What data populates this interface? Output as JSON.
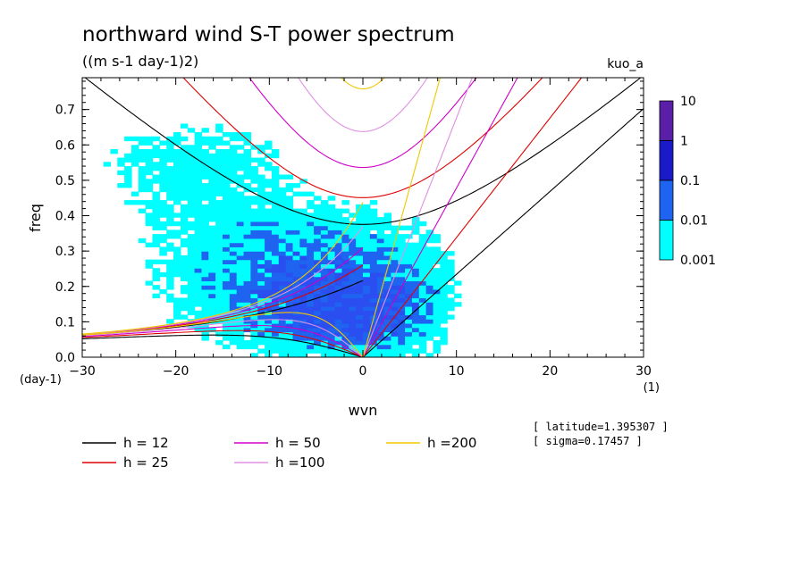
{
  "chart_data": {
    "type": "heatmap",
    "title": "northward wind S-T power spectrum",
    "subtitle": "((m s-1 day-1)2)",
    "corner_label": "kuo_a",
    "xlabel": "wvn",
    "ylabel": "freq",
    "x_unit": "(1)",
    "y_unit": "(day-1)",
    "xlim": [
      -30,
      30
    ],
    "ylim": [
      0,
      0.79
    ],
    "x_ticks": [
      -30,
      -20,
      -10,
      0,
      10,
      20,
      30
    ],
    "x_tick_labels": [
      "-30",
      "-20",
      "-10",
      "0",
      "10",
      "20",
      "30"
    ],
    "y_ticks": [
      0.0,
      0.1,
      0.2,
      0.3,
      0.4,
      0.5,
      0.6,
      0.7
    ],
    "y_tick_labels": [
      "0.0",
      "0.1",
      "0.2",
      "0.3",
      "0.4",
      "0.5",
      "0.6",
      "0.7"
    ],
    "colorbar": {
      "levels": [
        "10",
        "1",
        "0.1",
        "0.01",
        "0.001"
      ],
      "colors": [
        "#5a1fa8",
        "#1a1ac8",
        "#1e64f0",
        "#00ffff"
      ],
      "bin_edges": [
        0.001,
        0.01,
        0.1,
        1,
        10
      ]
    },
    "dispersion_curves": [
      {
        "name": "h = 12",
        "h": 12,
        "color": "#000000"
      },
      {
        "name": "h = 25",
        "h": 25,
        "color": "#e00000"
      },
      {
        "name": "h = 50",
        "h": 50,
        "color": "#d000c8"
      },
      {
        "name": "h =100",
        "h": 100,
        "color": "#e090e0"
      },
      {
        "name": "h =200",
        "h": 200,
        "color": "#f0c800"
      }
    ],
    "info": [
      "[ latitude=1.395307 ]",
      "[ sigma=0.17457 ]"
    ],
    "power_regions": [
      {
        "level": "0.001-0.01",
        "wvn_range": [
          -30,
          12
        ],
        "freq_range": [
          0.0,
          0.7
        ]
      },
      {
        "level": "0.01-0.1",
        "wvn_range": [
          -24,
          7
        ],
        "freq_range": [
          0.02,
          0.42
        ]
      },
      {
        "level": "0.1-1",
        "wvn_range": [
          -8,
          2
        ],
        "freq_range": [
          0.06,
          0.2
        ]
      }
    ]
  }
}
